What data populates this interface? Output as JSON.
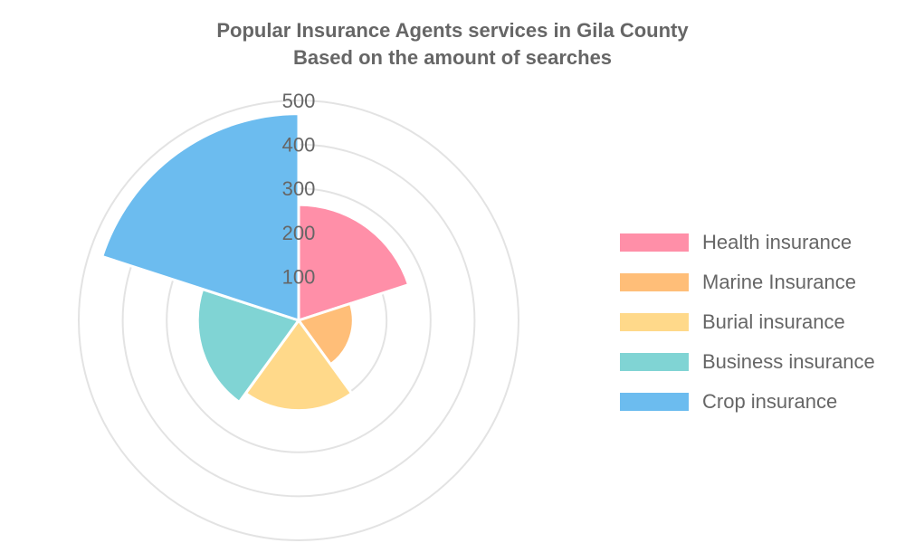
{
  "chart_data": {
    "type": "polarArea",
    "title": "Popular Insurance Agents services in Gila County",
    "subtitle": "Based on the amount of searches",
    "r_ticks": [
      "100",
      "200",
      "300",
      "400",
      "500"
    ],
    "rmax": 500,
    "grid": true,
    "legend_position": "right",
    "categories": [
      "Health insurance",
      "Marine Insurance",
      "Burial insurance",
      "Business insurance",
      "Crop insurance"
    ],
    "values": [
      263,
      124,
      205,
      230,
      470
    ],
    "colors": [
      "#ff8fa8",
      "#ffbe78",
      "#ffd98a",
      "#80d4d4",
      "#6cbcef"
    ]
  }
}
